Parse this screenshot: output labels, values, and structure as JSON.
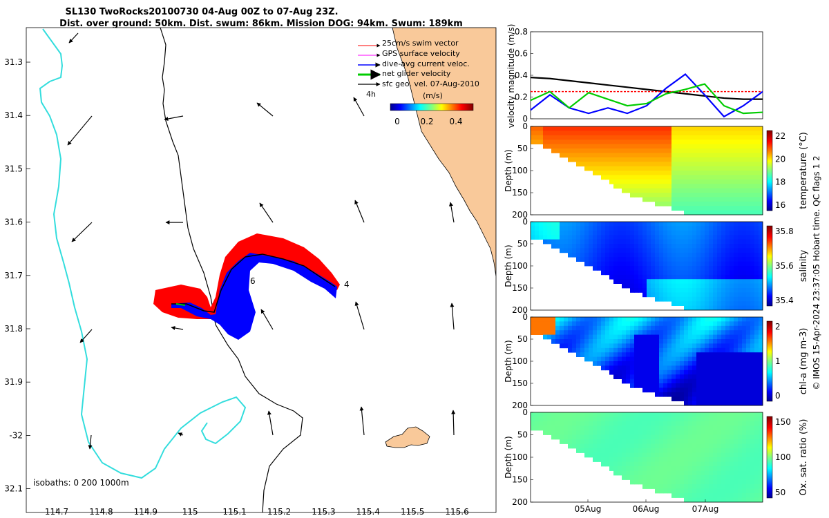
{
  "title": {
    "line1": "SL130 TwoRocks20100730 04-Aug 00Z to 07-Aug 23Z.",
    "line2": "Dist. over ground: 50km. Dist. swum: 86km. Mission DOG: 94km. Swum: 189km"
  },
  "map": {
    "lon_ticks": [
      "114.7",
      "114.8",
      "114.9",
      "115",
      "115.1",
      "115.2",
      "115.3",
      "115.4",
      "115.5",
      "115.6"
    ],
    "lat_ticks": [
      "31.3",
      "31.4",
      "31.5",
      "31.6",
      "31.7",
      "31.8",
      "31.9",
      "-32",
      "32.1"
    ],
    "isobaths_label": "isobaths: 0   200  1000m",
    "track_labels": [
      "4",
      "6"
    ],
    "time_label": "4h",
    "legend": [
      {
        "label": "25cm/s swim vector",
        "color": "#ff0000"
      },
      {
        "label": "GPS surface velocity",
        "color": "#ff00ff"
      },
      {
        "label": "dive-avg current veloc.",
        "color": "#0000ff"
      },
      {
        "label": "net glider velocity",
        "color": "#00cc00"
      },
      {
        "label": "sfc geo. vel. 07-Aug-2010",
        "color": "#000000"
      }
    ],
    "colorbar": {
      "title": "(m/s)",
      "ticks": [
        "0",
        "0.2",
        "0.4"
      ]
    },
    "colors": {
      "isobath_200": "#000000",
      "isobath_1000": "#33dddd",
      "land": "#f9c99a",
      "track": "#0000ff"
    }
  },
  "chart_data": [
    {
      "type": "line",
      "title": "",
      "ylabel": "velocity magnitude (m/s)",
      "ylim": [
        0,
        0.8
      ],
      "yticks": [
        "0",
        "0.2",
        "0.4",
        "0.6",
        "0.8"
      ],
      "series": [
        {
          "name": "sfc geo. vel.",
          "color": "#000000",
          "values": [
            0.38,
            0.37,
            0.35,
            0.33,
            0.31,
            0.29,
            0.27,
            0.25,
            0.23,
            0.21,
            0.19,
            0.18,
            0.18
          ]
        },
        {
          "name": "25cm/s swim vector",
          "color": "#ff0000",
          "values": [
            0.25,
            0.25,
            0.25,
            0.25,
            0.25,
            0.25,
            0.25,
            0.25,
            0.25,
            0.25,
            0.25,
            0.25,
            0.25
          ]
        },
        {
          "name": "dive-avg current",
          "color": "#0000ff",
          "values": [
            0.08,
            0.22,
            0.1,
            0.05,
            0.1,
            0.05,
            0.12,
            0.28,
            0.41,
            0.22,
            0.02,
            0.12,
            0.25
          ]
        },
        {
          "name": "net glider velocity",
          "color": "#00cc00",
          "values": [
            0.17,
            0.25,
            0.1,
            0.24,
            0.18,
            0.12,
            0.14,
            0.23,
            0.27,
            0.32,
            0.12,
            0.05,
            0.06
          ]
        }
      ]
    },
    {
      "type": "heatmap",
      "ylabel": "Depth (m)",
      "yticks": [
        "0",
        "50",
        "100",
        "150",
        "200"
      ],
      "colorbar_label": "temperature (°C)",
      "colorbar_ticks": [
        "22",
        "20",
        "18",
        "16"
      ],
      "range": [
        15.5,
        22.5
      ]
    },
    {
      "type": "heatmap",
      "ylabel": "Depth (m)",
      "yticks": [
        "0",
        "50",
        "100",
        "150",
        "200"
      ],
      "colorbar_label": "salinity",
      "colorbar_ticks": [
        "35.8",
        "35.6",
        "35.4"
      ],
      "range": [
        35.3,
        35.95
      ]
    },
    {
      "type": "heatmap",
      "ylabel": "Depth (m)",
      "yticks": [
        "0",
        "50",
        "100",
        "150",
        "200"
      ],
      "colorbar_label": "chl-a (mg m-3)",
      "colorbar_ticks": [
        "2",
        "1",
        "0"
      ],
      "range": [
        0,
        2
      ]
    },
    {
      "type": "heatmap",
      "ylabel": "Depth (m)",
      "yticks": [
        "0",
        "50",
        "100",
        "150",
        "200"
      ],
      "xticks": [
        "05Aug",
        "06Aug",
        "07Aug"
      ],
      "colorbar_label": "Ox. sat. ratio (%)",
      "colorbar_ticks": [
        "150",
        "100",
        "50"
      ],
      "range": [
        20,
        175
      ]
    }
  ],
  "footer": "© IMOS 15-Apr-2024 23:37:05 Hobart time. QC flags 1  2"
}
